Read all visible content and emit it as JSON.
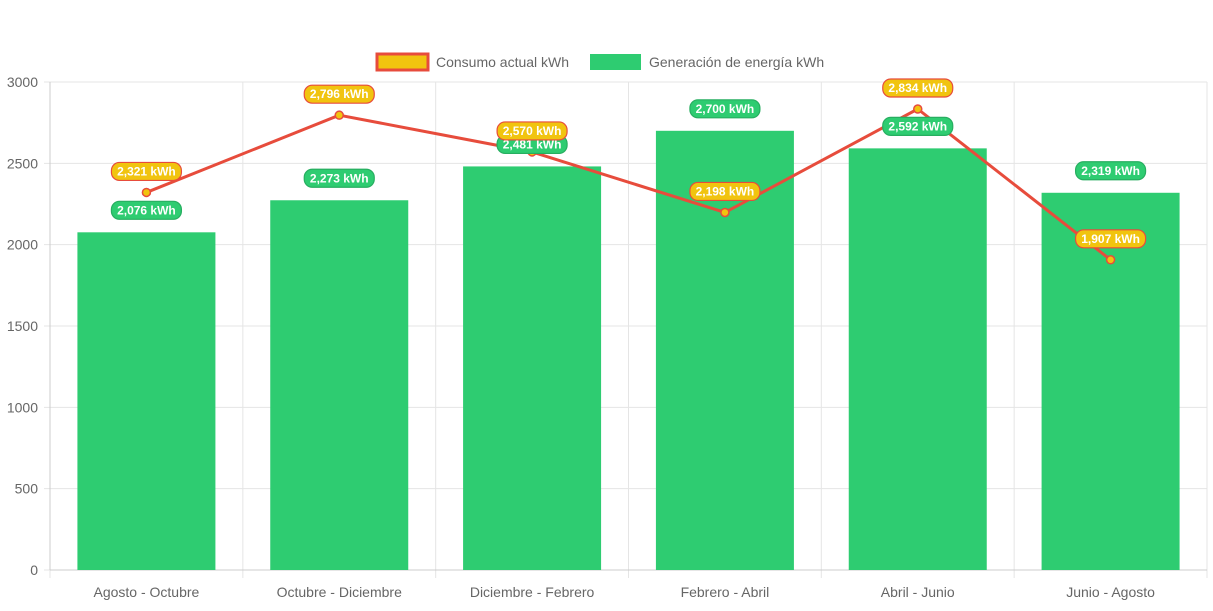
{
  "chart_data": {
    "type": "bar",
    "categories": [
      "Agosto - Octubre",
      "Octubre - Diciembre",
      "Diciembre - Febrero",
      "Febrero - Abril",
      "Abril - Junio",
      "Junio - Agosto"
    ],
    "series": [
      {
        "name": "Consumo actual kWh",
        "render": "line",
        "values": [
          2321,
          2796,
          2570,
          2198,
          2834,
          1907
        ],
        "labels": [
          "2,321 kWh",
          "2,796 kWh",
          "2,570 kWh",
          "2,198 kWh",
          "2,834 kWh",
          "1,907 kWh"
        ],
        "color": "#e74c3c",
        "fill_color": "#f1c40f"
      },
      {
        "name": "Generación de energía kWh",
        "render": "bar",
        "values": [
          2076,
          2273,
          2481,
          2700,
          2592,
          2319
        ],
        "labels": [
          "2,076 kWh",
          "2,273 kWh",
          "2,481 kWh",
          "2,700 kWh",
          "2,592 kWh",
          "2,319 kWh"
        ],
        "color": "#2ecc71"
      }
    ],
    "ylim": [
      0,
      3000
    ],
    "yticks": [
      0,
      500,
      1000,
      1500,
      2000,
      2500,
      3000
    ],
    "ytick_labels": [
      "0",
      "500",
      "1000",
      "1500",
      "2000",
      "2500",
      "3000"
    ],
    "grid": true,
    "legend_position": "top-center",
    "title": "",
    "xlabel": "",
    "ylabel": ""
  }
}
